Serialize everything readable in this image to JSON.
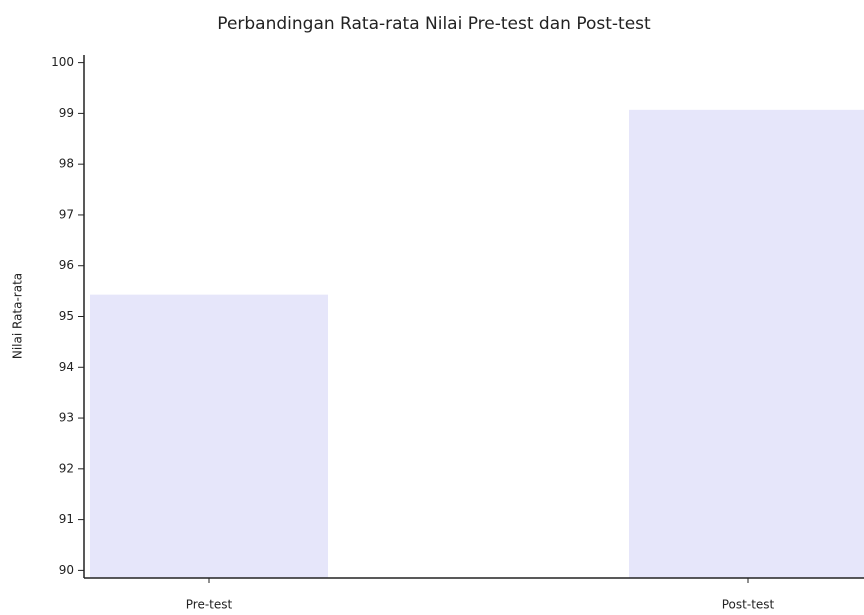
{
  "chart_data": {
    "type": "bar",
    "title": "Perbandingan Rata-rata Nilai Pre-test dan Post-test",
    "ylabel": "Nilai Rata-rata",
    "categories": [
      "Pre-test",
      "Post-test"
    ],
    "values": [
      95.43,
      99.07
    ],
    "color": "#e6e6fa",
    "ylim": [
      89.85,
      100.15
    ],
    "yticks": [
      90,
      91,
      92,
      93,
      94,
      95,
      96,
      97,
      98,
      99,
      100
    ]
  }
}
